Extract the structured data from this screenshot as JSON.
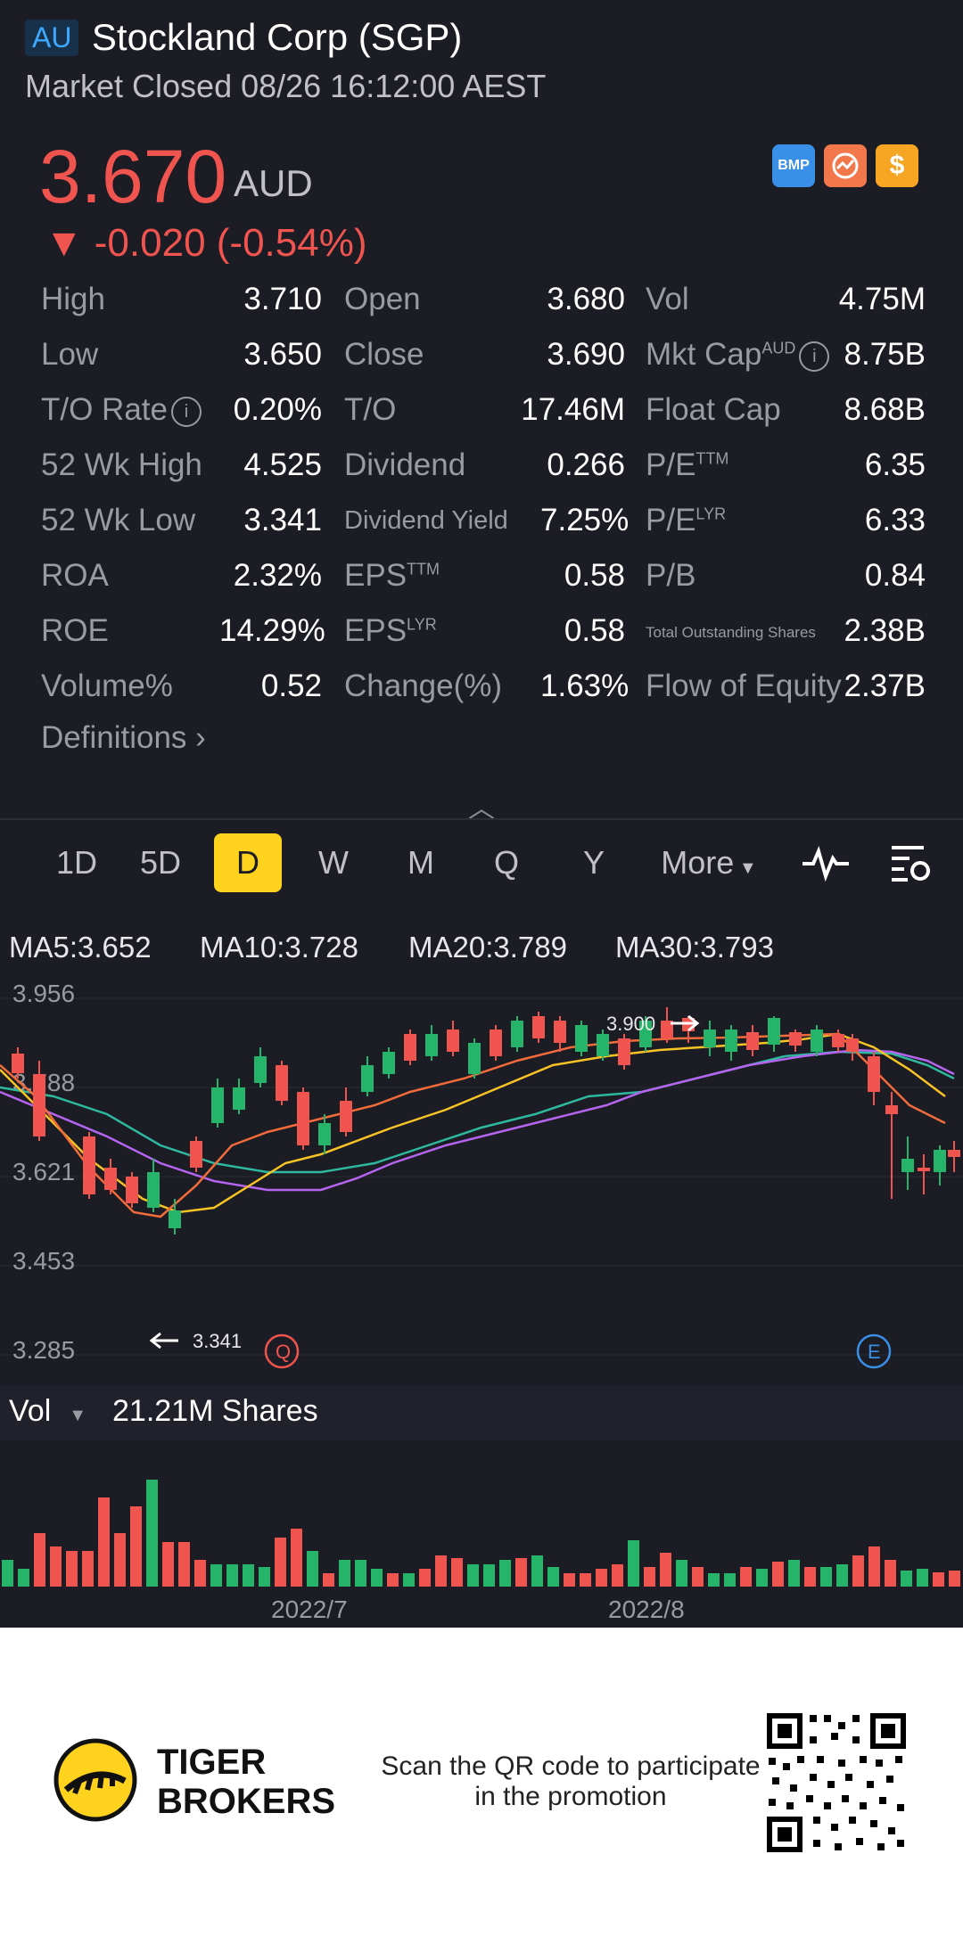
{
  "header": {
    "market": "AU",
    "title": "Stockland Corp (SGP)",
    "status": "Market Closed 08/26 16:12:00 AEST"
  },
  "quote": {
    "price": "3.670",
    "currency": "AUD",
    "change": "▼ -0.020 (-0.54%)"
  },
  "badges": [
    "BMP",
    "",
    "$"
  ],
  "stats": {
    "rows": [
      [
        [
          "High",
          "3.710"
        ],
        [
          "Open",
          "3.680"
        ],
        [
          "Vol",
          "4.75M"
        ]
      ],
      [
        [
          "Low",
          "3.650"
        ],
        [
          "Close",
          "3.690"
        ],
        [
          "Mkt Cap",
          "8.75B"
        ]
      ],
      [
        [
          "T/O Rate",
          "0.20%"
        ],
        [
          "T/O",
          "17.46M"
        ],
        [
          "Float Cap",
          "8.68B"
        ]
      ],
      [
        [
          "52 Wk High",
          "4.525"
        ],
        [
          "Dividend",
          "0.266"
        ],
        [
          "P/E",
          "6.35"
        ]
      ],
      [
        [
          "52 Wk Low",
          "3.341"
        ],
        [
          "Dividend Yield",
          "7.25%"
        ],
        [
          "P/E",
          "6.33"
        ]
      ],
      [
        [
          "ROA",
          "2.32%"
        ],
        [
          "EPS",
          "0.58"
        ],
        [
          "P/B",
          "0.84"
        ]
      ],
      [
        [
          "ROE",
          "14.29%"
        ],
        [
          "EPS",
          "0.58"
        ],
        [
          "Total Outstanding Shares",
          "2.38B"
        ]
      ],
      [
        [
          "Volume%",
          "0.52"
        ],
        [
          "Change(%)",
          "1.63%"
        ],
        [
          "Flow of Equity",
          "2.37B"
        ]
      ]
    ],
    "sup_aud": "AUD",
    "sup_ttm": "TTM",
    "sup_lyr": "LYR"
  },
  "definitions": "Definitions",
  "tabs": [
    "1D",
    "5D",
    "D",
    "W",
    "M",
    "Q",
    "Y",
    "More"
  ],
  "ma": {
    "ma5": "MA5:3.652",
    "ma10": "MA10:3.728",
    "ma20": "MA20:3.789",
    "ma30": "MA30:3.793"
  },
  "chart": {
    "yticks": [
      "3.956",
      "3.788",
      "3.621",
      "3.453",
      "3.285"
    ],
    "high_label": "3.900",
    "low_label": "3.341",
    "marker_q": "Q",
    "marker_e": "E",
    "xticks": [
      "2022/7",
      "2022/8"
    ]
  },
  "volume": {
    "label": "Vol",
    "value": "21.21M Shares"
  },
  "colors": {
    "up": "#26b36a",
    "down": "#f0544f",
    "ma5": "#f26b3a",
    "ma10": "#f7c325",
    "ma20": "#b565f0",
    "ma30": "#2fb8a0"
  },
  "footer": {
    "brand_line1": "TIGER",
    "brand_line2": "BROKERS",
    "promo": "Scan the QR code to participate in the promotion"
  }
}
